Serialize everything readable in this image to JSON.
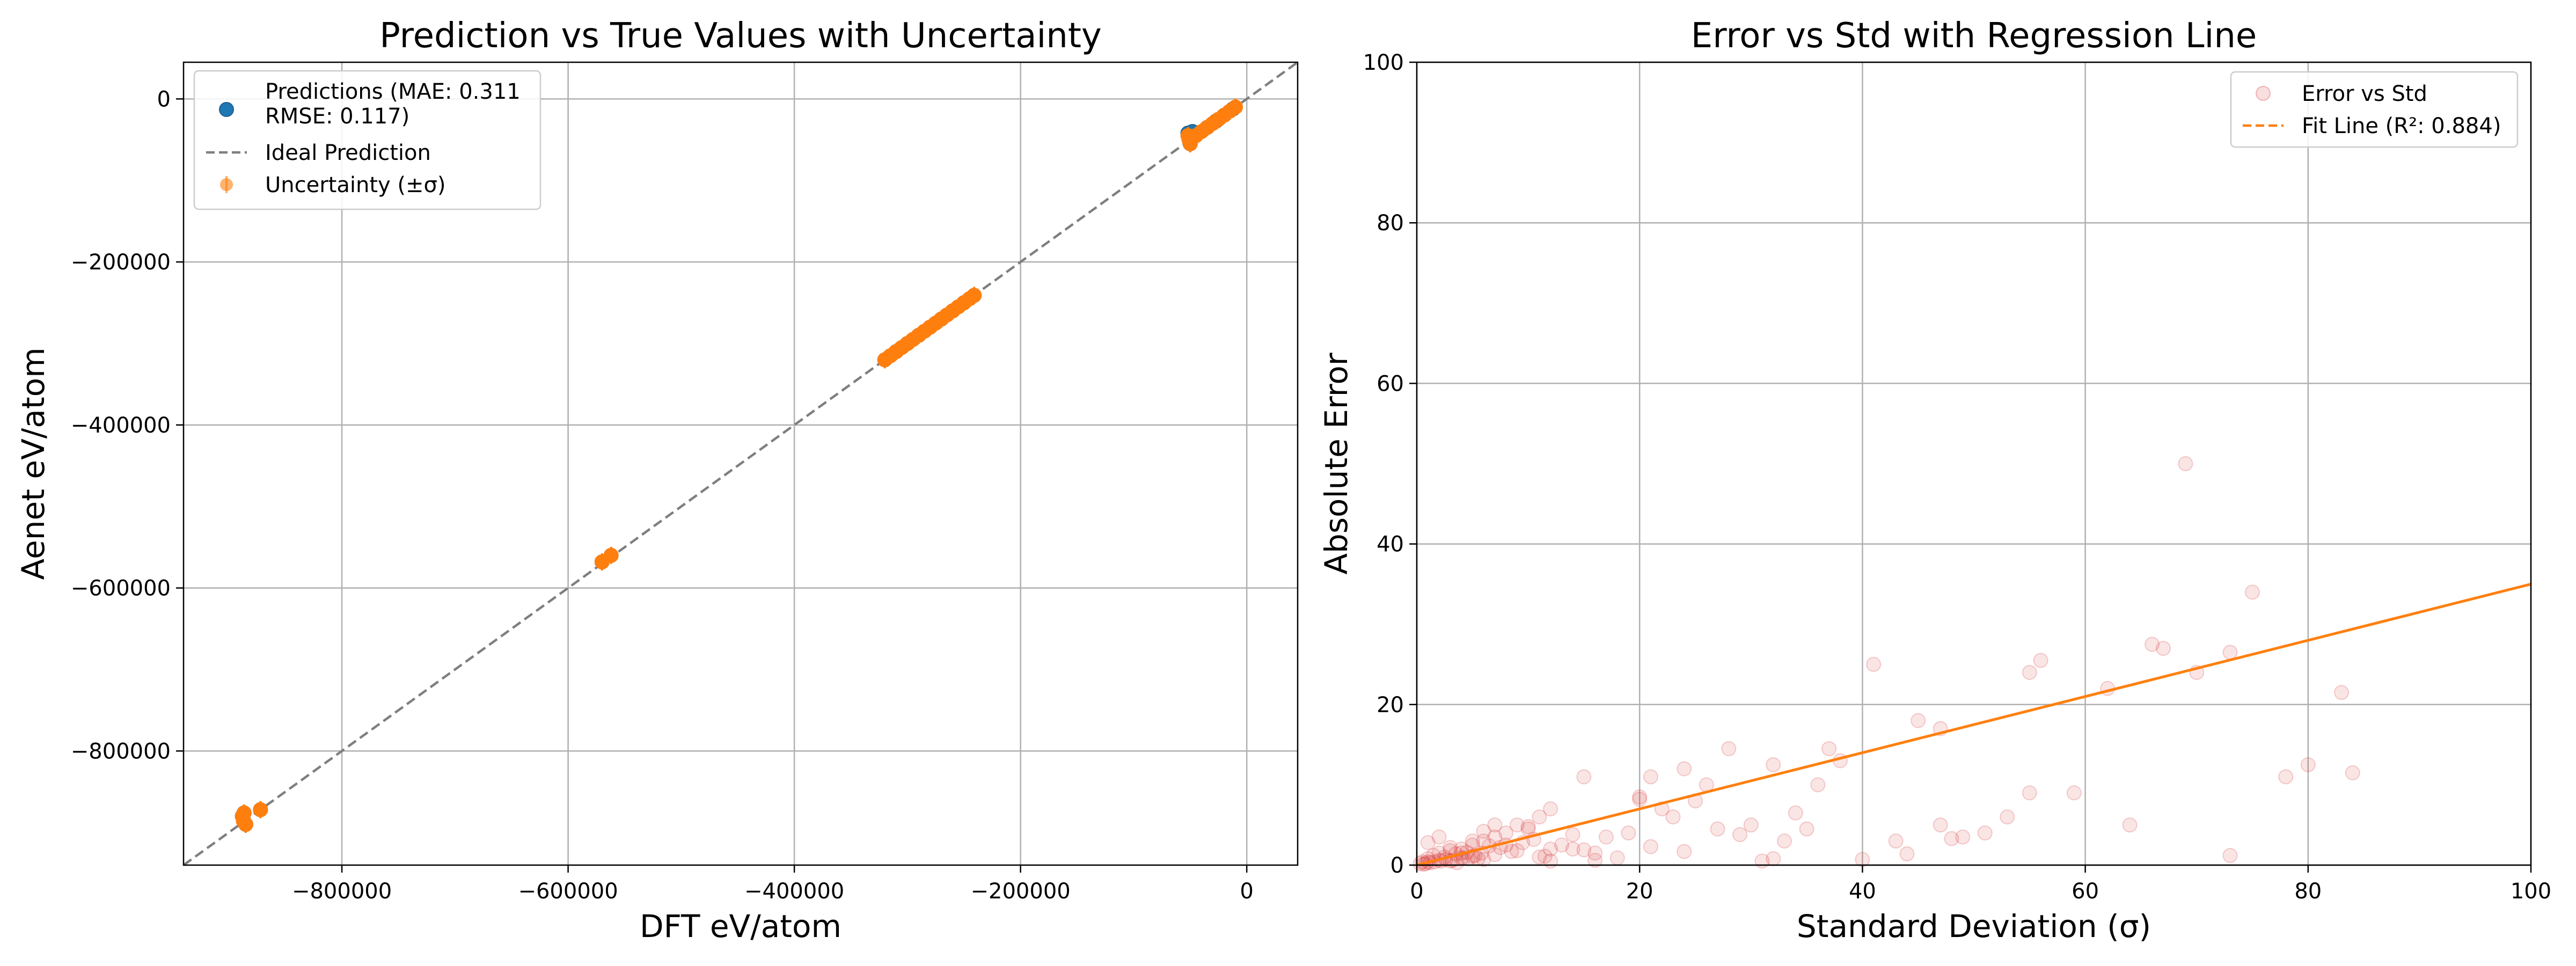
{
  "chart_data": [
    {
      "type": "scatter",
      "title": "Prediction vs True Values with Uncertainty",
      "xlabel": "DFT eV/atom",
      "ylabel": "Aenet eV/atom",
      "xlim": [
        -940000,
        45000
      ],
      "ylim": [
        -940000,
        45000
      ],
      "xticks": [
        -800000,
        -600000,
        -400000,
        -200000,
        0
      ],
      "xtick_labels": [
        "−800000",
        "−600000",
        "−400000",
        "−200000",
        "0"
      ],
      "yticks": [
        0,
        -200000,
        -400000,
        -600000,
        -800000
      ],
      "ytick_labels": [
        "0",
        "−200000",
        "−400000",
        "−600000",
        "−800000"
      ],
      "grid": true,
      "legend_position": "upper left",
      "legend": [
        {
          "label": "Predictions (MAE: 0.311\nRMSE: 0.117)",
          "marker": "circle",
          "color": "#1f77b4"
        },
        {
          "label": "Ideal Prediction",
          "marker": "dashed-line",
          "color": "#7f7f7f"
        },
        {
          "label": "Uncertainty (±σ)",
          "marker": "errorbar",
          "color": "#ff7f0e"
        }
      ],
      "ideal_line": {
        "x": [
          -940000,
          45000
        ],
        "y": [
          -940000,
          45000
        ],
        "color": "#7f7f7f",
        "style": "dashed"
      },
      "series": [
        {
          "name": "Predictions (MAE: 0.311\nRMSE: 0.117)",
          "color": "#1f77b4",
          "x": [
            -888000,
            -887000,
            -886500,
            -885000,
            -872000,
            -570000,
            -562000,
            -320000,
            -310000,
            -300000,
            -290000,
            -280000,
            -270000,
            -260000,
            -250000,
            -241000,
            -52000,
            -51000,
            -50000,
            -49000,
            -48000,
            -35000,
            -27000,
            -20000,
            -12000
          ],
          "y": [
            -880000,
            -886000,
            -876000,
            -890000,
            -872000,
            -568000,
            -560000,
            -320000,
            -310000,
            -300000,
            -290000,
            -280000,
            -270000,
            -260000,
            -250000,
            -241000,
            -42000,
            -50000,
            -55000,
            -47000,
            -40000,
            -35000,
            -27000,
            -20000,
            -12000
          ]
        },
        {
          "name": "Uncertainty (±σ)",
          "color": "#ff7f0e",
          "x": [
            -888000,
            -887000,
            -886500,
            -885000,
            -872000,
            -570000,
            -562000,
            -320000,
            -315000,
            -310000,
            -305000,
            -300000,
            -295000,
            -290000,
            -285000,
            -280000,
            -275000,
            -270000,
            -265000,
            -260000,
            -255000,
            -250000,
            -245000,
            -241000,
            -52000,
            -51000,
            -50000,
            -48000,
            -45000,
            -40000,
            -35000,
            -30000,
            -25000,
            -20000,
            -15000,
            -10000
          ],
          "y": [
            -880000,
            -886000,
            -876000,
            -890000,
            -872000,
            -568000,
            -560000,
            -320000,
            -315000,
            -310000,
            -305000,
            -300000,
            -295000,
            -290000,
            -285000,
            -280000,
            -275000,
            -270000,
            -265000,
            -260000,
            -255000,
            -250000,
            -245000,
            -241000,
            -45000,
            -50000,
            -55000,
            -48000,
            -45000,
            -40000,
            -35000,
            -30000,
            -25000,
            -20000,
            -15000,
            -10000
          ]
        }
      ]
    },
    {
      "type": "scatter",
      "title": "Error vs Std with Regression Line",
      "xlabel": "Standard Deviation (σ)",
      "ylabel": "Absolute Error",
      "xlim": [
        0,
        100
      ],
      "ylim": [
        0,
        100
      ],
      "xticks": [
        0,
        20,
        40,
        60,
        80,
        100
      ],
      "xtick_labels": [
        "0",
        "20",
        "40",
        "60",
        "80",
        "100"
      ],
      "yticks": [
        0,
        20,
        40,
        60,
        80,
        100
      ],
      "ytick_labels": [
        "0",
        "20",
        "40",
        "60",
        "80",
        "100"
      ],
      "grid": true,
      "legend_position": "upper right",
      "legend": [
        {
          "label": "Error vs Std",
          "marker": "circle",
          "color": "#d62728"
        },
        {
          "label": "Fit Line (R²: 0.884)",
          "marker": "dashed-line",
          "color": "#ff7f0e"
        }
      ],
      "fit_line": {
        "x": [
          0,
          100
        ],
        "y": [
          0,
          35
        ],
        "color": "#ff7f0e"
      },
      "series": [
        {
          "name": "Error vs Std",
          "color": "#d62728",
          "alpha": 0.12,
          "x": [
            69,
            75,
            41,
            73,
            56,
            55,
            66,
            67,
            83,
            62,
            45,
            47,
            37,
            38,
            32,
            28,
            24,
            20,
            20,
            21,
            15,
            26,
            23,
            36,
            34,
            30,
            33,
            35,
            43,
            49,
            51,
            53,
            47,
            64,
            59,
            55,
            70,
            78,
            80,
            84,
            73,
            31,
            32,
            12,
            11,
            10,
            9,
            8,
            7,
            6,
            5,
            4,
            3,
            2,
            1.5,
            1,
            0.5,
            0.3,
            1,
            2,
            3,
            4,
            5,
            6,
            7,
            8,
            9,
            10,
            11,
            12,
            14,
            16,
            18,
            19,
            22,
            25,
            27,
            29,
            12,
            14,
            16,
            3,
            4,
            5,
            6,
            7,
            2,
            1,
            0.8,
            2.5,
            3.5,
            4.5,
            5.5,
            6.5,
            1.2,
            2.2,
            3.2,
            4.2,
            5.2,
            0.6,
            1.6,
            2.6,
            3.6,
            4.6,
            5.8,
            7.5,
            8.5,
            9.5,
            10.5,
            11.5,
            13,
            15,
            17,
            21,
            24,
            40,
            44,
            48
          ],
          "y": [
            50,
            34,
            25,
            26.5,
            25.5,
            24,
            27.5,
            27,
            21.5,
            22,
            18,
            17,
            14.5,
            13,
            12.5,
            14.5,
            12,
            8.5,
            8.2,
            11,
            11,
            10,
            6,
            10,
            6.5,
            5,
            3,
            4.5,
            3,
            3.5,
            4,
            6,
            5,
            5,
            9,
            9,
            24,
            11,
            12.5,
            11.5,
            1.2,
            0.5,
            0.8,
            7,
            6,
            4.5,
            5,
            4,
            3.5,
            3,
            2.5,
            2,
            1.8,
            1.5,
            1.2,
            0.8,
            0.4,
            0.2,
            2.8,
            3.5,
            2.2,
            1.5,
            3,
            4.2,
            5,
            2.5,
            1.8,
            4.8,
            1,
            2,
            3.8,
            1.5,
            0.9,
            4,
            7,
            8,
            4.5,
            3.8,
            0.5,
            2,
            0.6,
            0.5,
            0.9,
            1.1,
            0.7,
            1.3,
            0.6,
            0.4,
            0.2,
            1,
            1.4,
            1.6,
            0.8,
            2.4,
            0.3,
            0.5,
            0.6,
            0.9,
            1.2,
            0.1,
            0.4,
            0.7,
            0.3,
            0.8,
            1.5,
            2.2,
            1.7,
            2.8,
            3.2,
            1.1,
            2.5,
            1.9,
            3.5,
            2.3,
            1.7,
            0.7,
            1.4,
            3.3
          ]
        }
      ]
    }
  ]
}
